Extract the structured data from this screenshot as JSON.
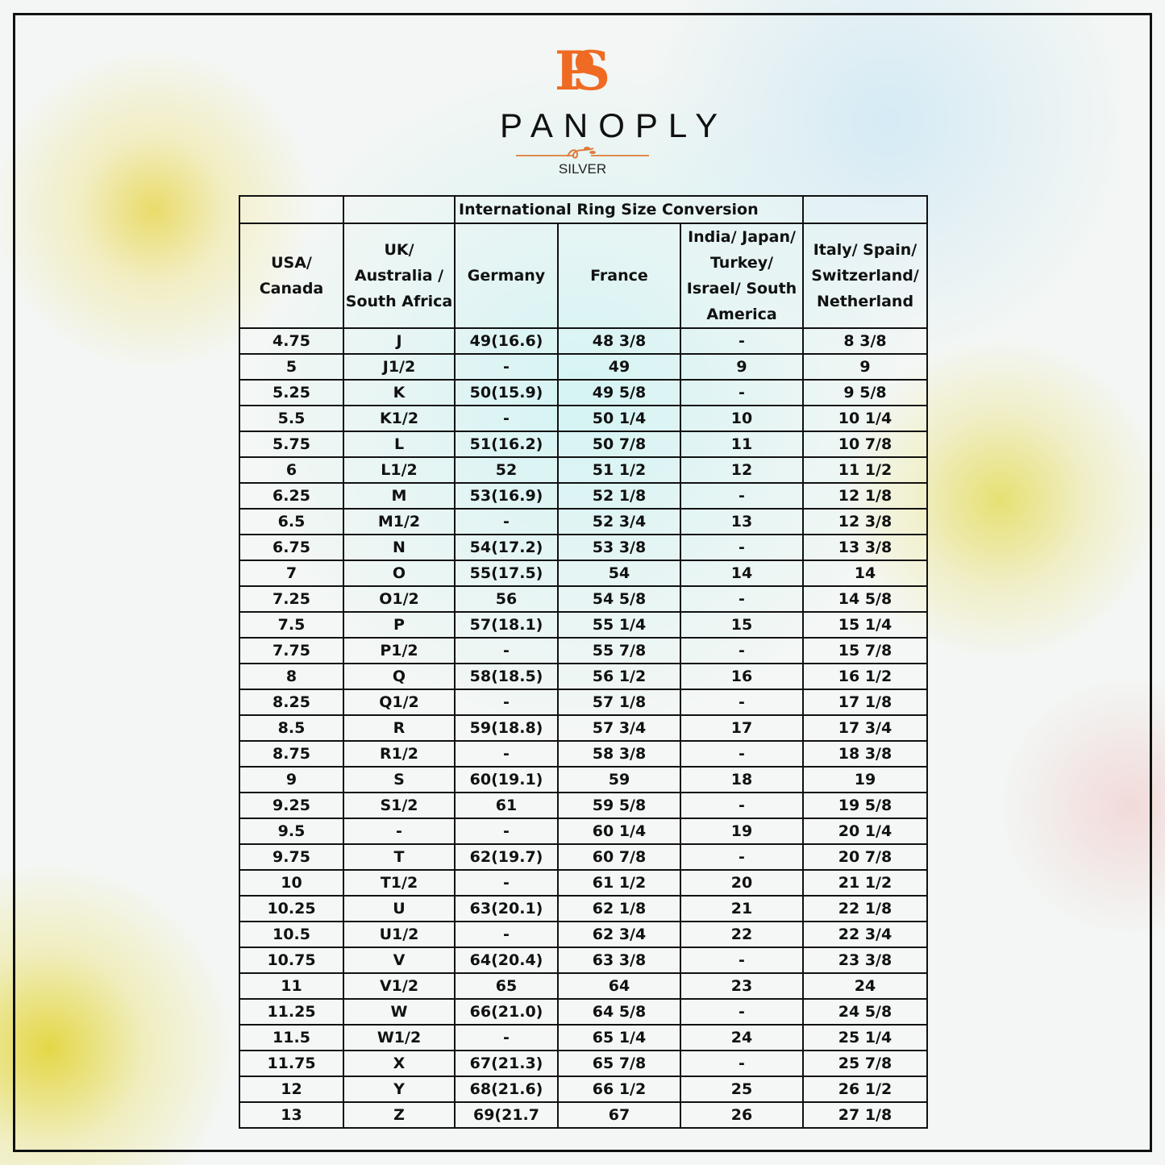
{
  "logo": {
    "monogram": "PS",
    "brand": "PANOPLY",
    "sub": "SILVER",
    "accent": "#ef6a22"
  },
  "table": {
    "title": "International Ring Size Conversion",
    "headers": [
      "USA/ Canada",
      "UK/ Australia / South Africa",
      "Germany",
      "France",
      "India/ Japan/ Turkey/ Israel/ South America",
      "Italy/ Spain/ Switzerland/ Netherland"
    ],
    "rows": [
      [
        "4.75",
        "J",
        "49(16.6)",
        "48 3/8",
        "-",
        "8 3/8"
      ],
      [
        "5",
        "J1/2",
        "-",
        "49",
        "9",
        "9"
      ],
      [
        "5.25",
        "K",
        "50(15.9)",
        "49 5/8",
        "-",
        "9 5/8"
      ],
      [
        "5.5",
        "K1/2",
        "-",
        "50 1/4",
        "10",
        "10 1/4"
      ],
      [
        "5.75",
        "L",
        "51(16.2)",
        "50 7/8",
        "11",
        "10 7/8"
      ],
      [
        "6",
        "L1/2",
        "52",
        "51 1/2",
        "12",
        "11 1/2"
      ],
      [
        "6.25",
        "M",
        "53(16.9)",
        "52 1/8",
        "-",
        "12 1/8"
      ],
      [
        "6.5",
        "M1/2",
        "-",
        "52 3/4",
        "13",
        "12 3/8"
      ],
      [
        "6.75",
        "N",
        "54(17.2)",
        "53 3/8",
        "-",
        "13 3/8"
      ],
      [
        "7",
        "O",
        "55(17.5)",
        "54",
        "14",
        "14"
      ],
      [
        "7.25",
        "O1/2",
        "56",
        "54 5/8",
        "-",
        "14 5/8"
      ],
      [
        "7.5",
        "P",
        "57(18.1)",
        "55 1/4",
        "15",
        "15 1/4"
      ],
      [
        "7.75",
        "P1/2",
        "-",
        "55 7/8",
        "-",
        "15 7/8"
      ],
      [
        "8",
        "Q",
        "58(18.5)",
        "56 1/2",
        "16",
        "16 1/2"
      ],
      [
        "8.25",
        "Q1/2",
        "-",
        "57 1/8",
        "-",
        "17 1/8"
      ],
      [
        "8.5",
        "R",
        "59(18.8)",
        "57 3/4",
        "17",
        "17 3/4"
      ],
      [
        "8.75",
        "R1/2",
        "-",
        "58 3/8",
        "-",
        "18 3/8"
      ],
      [
        "9",
        "S",
        "60(19.1)",
        "59",
        "18",
        "19"
      ],
      [
        "9.25",
        "S1/2",
        "61",
        "59 5/8",
        "-",
        "19 5/8"
      ],
      [
        "9.5",
        "-",
        "-",
        "60 1/4",
        "19",
        "20 1/4"
      ],
      [
        "9.75",
        "T",
        "62(19.7)",
        "60 7/8",
        "-",
        "20 7/8"
      ],
      [
        "10",
        "T1/2",
        "-",
        "61 1/2",
        "20",
        "21 1/2"
      ],
      [
        "10.25",
        "U",
        "63(20.1)",
        "62 1/8",
        "21",
        "22 1/8"
      ],
      [
        "10.5",
        "U1/2",
        "-",
        "62 3/4",
        "22",
        "22 3/4"
      ],
      [
        "10.75",
        "V",
        "64(20.4)",
        "63 3/8",
        "-",
        "23 3/8"
      ],
      [
        "11",
        "V1/2",
        "65",
        "64",
        "23",
        "24"
      ],
      [
        "11.25",
        "W",
        "66(21.0)",
        "64 5/8",
        "-",
        "24 5/8"
      ],
      [
        "11.5",
        "W1/2",
        "-",
        "65 1/4",
        "24",
        "25 1/4"
      ],
      [
        "11.75",
        "X",
        "67(21.3)",
        "65 7/8",
        "-",
        "25 7/8"
      ],
      [
        "12",
        "Y",
        "68(21.6)",
        "66 1/2",
        "25",
        "26 1/2"
      ],
      [
        "13",
        "Z",
        "69(21.7",
        "67",
        "26",
        "27 1/8"
      ]
    ]
  }
}
